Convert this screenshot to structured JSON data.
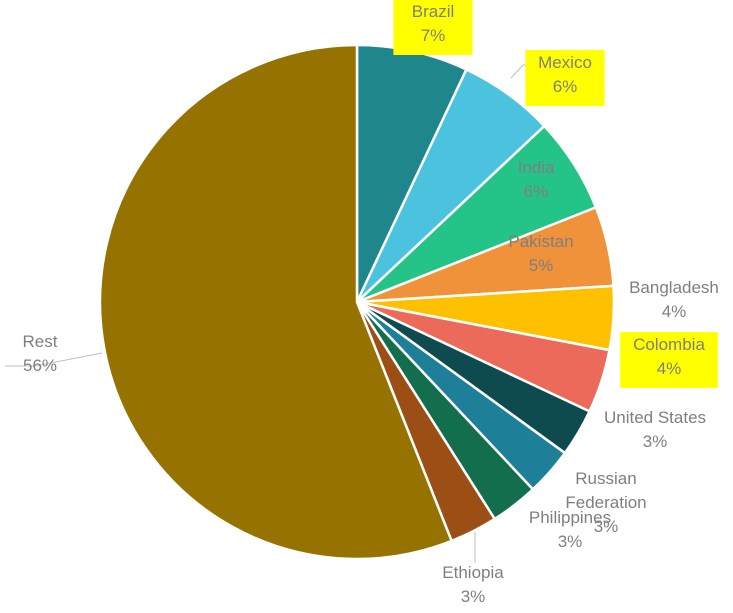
{
  "chart_data": {
    "type": "pie",
    "title": "",
    "start_angle_deg": 0,
    "direction": "clockwise",
    "slices": [
      {
        "label": "Brazil",
        "value": 7,
        "value_label": "7%",
        "color": "#1f868c",
        "label_highlight": true
      },
      {
        "label": "Mexico",
        "value": 6,
        "value_label": "6%",
        "color": "#4cc3de",
        "label_highlight": true
      },
      {
        "label": "India",
        "value": 6,
        "value_label": "6%",
        "color": "#24c387",
        "label_highlight": false
      },
      {
        "label": "Pakistan",
        "value": 5,
        "value_label": "5%",
        "color": "#f0923a",
        "label_highlight": false
      },
      {
        "label": "Bangladesh",
        "value": 4,
        "value_label": "4%",
        "color": "#ffc000",
        "label_highlight": false
      },
      {
        "label": "Colombia",
        "value": 4,
        "value_label": "4%",
        "color": "#ec6a5a",
        "label_highlight": true
      },
      {
        "label": "United States",
        "value": 3,
        "value_label": "3%",
        "color": "#0e4b4f",
        "label_highlight": false
      },
      {
        "label": "Russian Federation",
        "value": 3,
        "value_label": "3%",
        "color": "#1e7f98",
        "label_highlight": false
      },
      {
        "label": "Philippines",
        "value": 3,
        "value_label": "3%",
        "color": "#136e4e",
        "label_highlight": false
      },
      {
        "label": "Ethiopia",
        "value": 3,
        "value_label": "3%",
        "color": "#9b4f14",
        "label_highlight": false
      },
      {
        "label": "Rest",
        "value": 56,
        "value_label": "56%",
        "color": "#967300",
        "label_highlight": false
      }
    ],
    "label_text_color": "#7f7f7f",
    "label_highlight_color": "#ffff00",
    "slice_border_color": "#ffffff"
  }
}
